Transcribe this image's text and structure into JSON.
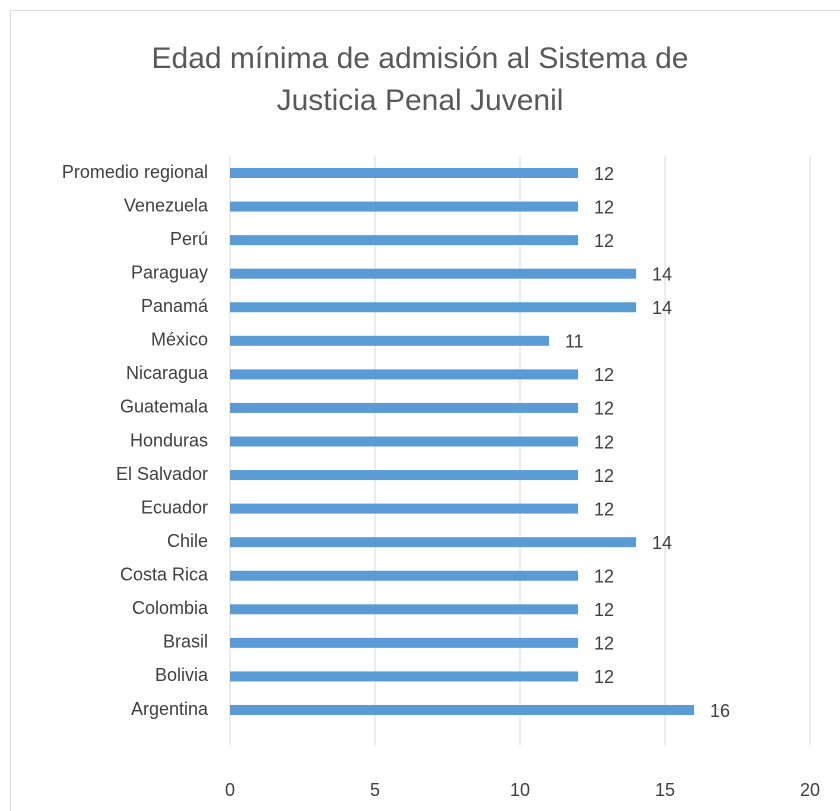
{
  "chart_data": {
    "type": "barh",
    "title": "Edad mínima de admisión al Sistema de Justicia Penal Juvenil",
    "categories": [
      "Promedio regional",
      "Venezuela",
      "Perú",
      "Paraguay",
      "Panamá",
      "México",
      "Nicaragua",
      "Guatemala",
      "Honduras",
      "El Salvador",
      "Ecuador",
      "Chile",
      "Costa Rica",
      "Colombia",
      "Brasil",
      "Bolivia",
      "Argentina"
    ],
    "values": [
      12,
      12,
      12,
      14,
      14,
      11,
      12,
      12,
      12,
      12,
      12,
      14,
      12,
      12,
      12,
      12,
      16
    ],
    "color": "#5b9bd5",
    "xlim": [
      0,
      20
    ],
    "xticks": [
      0,
      5,
      10,
      15,
      20
    ],
    "grid": true
  }
}
